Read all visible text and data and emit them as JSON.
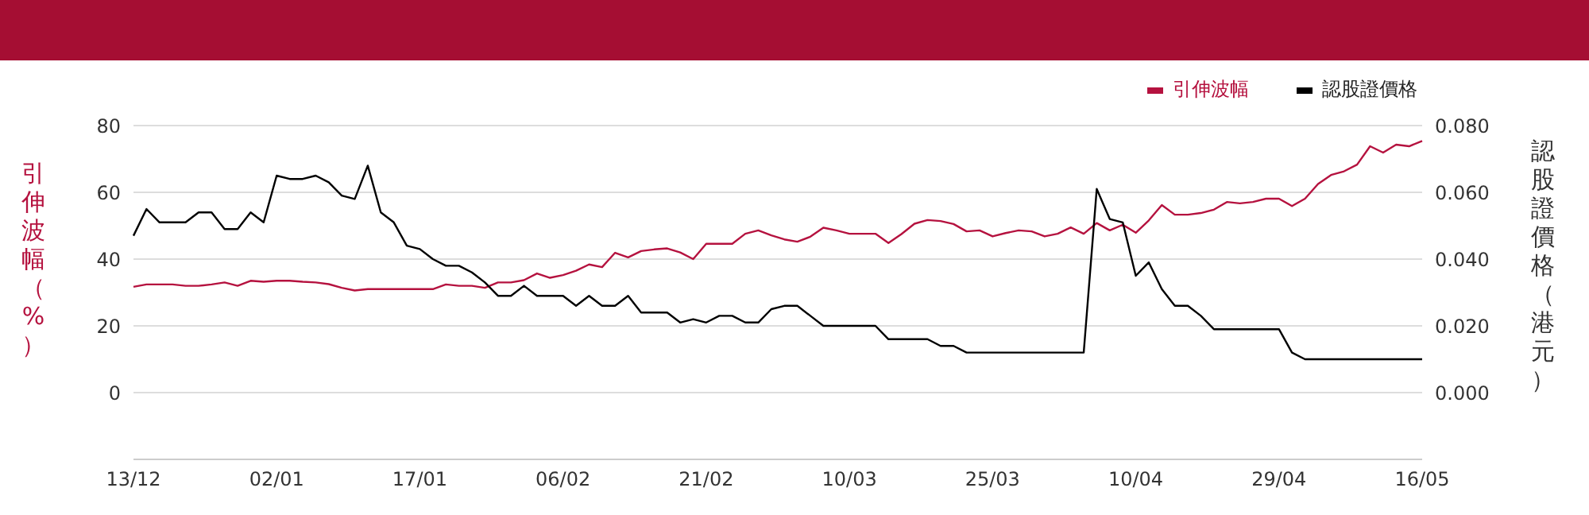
{
  "chart_data": {
    "type": "line",
    "ylabel": "引伸波幅（%）",
    "y2label": "認股證價格（港元）",
    "categories": [
      "13/12",
      null,
      null,
      null,
      null,
      null,
      null,
      null,
      null,
      null,
      null,
      "02/01",
      null,
      null,
      null,
      null,
      null,
      null,
      null,
      null,
      null,
      null,
      "17/01",
      null,
      null,
      null,
      null,
      null,
      null,
      null,
      null,
      null,
      null,
      "06/02",
      null,
      null,
      null,
      null,
      null,
      null,
      null,
      null,
      null,
      null,
      "21/02",
      null,
      null,
      null,
      null,
      null,
      null,
      null,
      null,
      null,
      null,
      "10/03",
      null,
      null,
      null,
      null,
      null,
      null,
      null,
      null,
      null,
      null,
      "25/03",
      null,
      null,
      null,
      null,
      null,
      null,
      null,
      null,
      null,
      null,
      "10/04",
      null,
      null,
      null,
      null,
      null,
      null,
      null,
      null,
      null,
      null,
      "29/04",
      null,
      null,
      null,
      null,
      null,
      null,
      null,
      null,
      null,
      null,
      "16/05"
    ],
    "series": [
      {
        "name": "引伸波幅",
        "color": "#b5123f",
        "values": [
          31.7,
          32.4,
          32.4,
          32.4,
          32,
          32,
          32.4,
          33,
          32,
          33.5,
          33.2,
          33.5,
          33.5,
          33.2,
          33,
          32.5,
          31.4,
          30.6,
          31,
          31,
          31,
          31,
          31,
          31,
          32.4,
          32,
          32,
          31.4,
          33,
          33,
          33.7,
          35.7,
          34.4,
          35.2,
          36.5,
          38.4,
          37.6,
          41.9,
          40.5,
          42.4,
          42.9,
          43.2,
          42,
          40,
          44.6,
          44.6,
          44.6,
          47.6,
          48.6,
          47.1,
          45.9,
          45.2,
          46.7,
          49.4,
          48.6,
          47.6,
          47.6,
          47.6,
          44.8,
          47.5,
          50.6,
          51.7,
          51.4,
          50.5,
          48.3,
          48.6,
          46.8,
          47.8,
          48.6,
          48.3,
          46.8,
          47.6,
          49.5,
          47.6,
          50.8,
          48.6,
          50.3,
          47.9,
          51.6,
          56.2,
          53.3,
          53.3,
          53.8,
          54.8,
          57.1,
          56.7,
          57.1,
          58.1,
          58.1,
          55.9,
          58.1,
          62.5,
          65.2,
          66.3,
          68.3,
          73.8,
          71.9,
          74.3,
          73.8,
          75.4
        ]
      },
      {
        "name": "認股證價格",
        "color": "#000000",
        "axis": "y2",
        "values": [
          0.047,
          0.055,
          0.051,
          0.051,
          0.051,
          0.054,
          0.054,
          0.049,
          0.049,
          0.054,
          0.051,
          0.065,
          0.064,
          0.064,
          0.065,
          0.063,
          0.059,
          0.058,
          0.068,
          0.054,
          0.051,
          0.044,
          0.043,
          0.04,
          0.038,
          0.038,
          0.036,
          0.033,
          0.029,
          0.029,
          0.032,
          0.029,
          0.029,
          0.029,
          0.026,
          0.029,
          0.026,
          0.026,
          0.029,
          0.024,
          0.024,
          0.024,
          0.021,
          0.022,
          0.021,
          0.023,
          0.023,
          0.021,
          0.021,
          0.025,
          0.026,
          0.026,
          0.023,
          0.02,
          0.02,
          0.02,
          0.02,
          0.02,
          0.016,
          0.016,
          0.016,
          0.016,
          0.014,
          0.014,
          0.012,
          0.012,
          0.012,
          0.012,
          0.012,
          0.012,
          0.012,
          0.012,
          0.012,
          0.012,
          0.061,
          0.052,
          0.051,
          0.035,
          0.039,
          0.031,
          0.026,
          0.026,
          0.023,
          0.019,
          0.019,
          0.019,
          0.019,
          0.019,
          0.019,
          0.012,
          0.01,
          0.01,
          0.01,
          0.01,
          0.01,
          0.01,
          0.01,
          0.01,
          0.01,
          0.01
        ]
      }
    ],
    "ylim": [
      -20,
      80
    ],
    "yticks": [
      0,
      20,
      40,
      60,
      80
    ],
    "y2lim": [
      -0.02,
      0.08
    ],
    "y2ticks": [
      {
        "value": 0,
        "label": "0.000"
      },
      {
        "value": 0.02,
        "label": "0.020"
      },
      {
        "value": 0.04,
        "label": "0.040"
      },
      {
        "value": 0.06,
        "label": "0.060"
      },
      {
        "value": 0.08,
        "label": "0.080"
      }
    ],
    "grid": "y",
    "legend": "top right",
    "marker": "none",
    "line_style": "solid"
  }
}
